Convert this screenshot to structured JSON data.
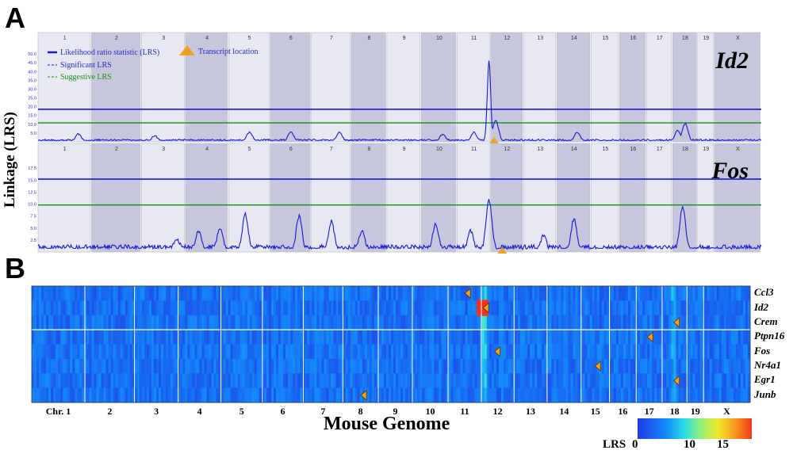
{
  "panels": {
    "a": "A",
    "b": "B"
  },
  "y_axis_label": "Linkage (LRS)",
  "chromosomes": [
    "1",
    "2",
    "3",
    "4",
    "5",
    "6",
    "7",
    "8",
    "9",
    "10",
    "11",
    "12",
    "13",
    "14",
    "15",
    "16",
    "17",
    "18",
    "19",
    "X"
  ],
  "legend": {
    "lrs": "Likelihood ratio statistic (LRS)",
    "significant": "Significant LRS",
    "suggestive": "Suggestive LRS",
    "transcript": "Transcript location"
  },
  "colors": {
    "lrs": "#1a1ad6",
    "significant": "#1a1ad6",
    "suggestive": "#1e8c1e",
    "transcript": "#f0a020",
    "panel_odd": "#e8e8f2",
    "panel_even": "#c6c6dc"
  },
  "chart_data": [
    {
      "type": "line",
      "title": "Id2",
      "ylabel": "Linkage (LRS)",
      "ylim": [
        0,
        55
      ],
      "yticks": [
        "5.0",
        "10.0",
        "15.0",
        "20.0",
        "25.0",
        "30.0",
        "35.0",
        "40.0",
        "45.0",
        "50.0"
      ],
      "significant_lrs": 18.5,
      "suggestive_lrs": 10.8,
      "transcript_location": {
        "chromosome": "12",
        "position": 0.1
      },
      "peaks": [
        {
          "chromosome": "1",
          "position": 0.75,
          "lrs": 4
        },
        {
          "chromosome": "3",
          "position": 0.3,
          "lrs": 3
        },
        {
          "chromosome": "5",
          "position": 0.5,
          "lrs": 5
        },
        {
          "chromosome": "6",
          "position": 0.5,
          "lrs": 5
        },
        {
          "chromosome": "7",
          "position": 0.7,
          "lrs": 5
        },
        {
          "chromosome": "10",
          "position": 0.6,
          "lrs": 4
        },
        {
          "chromosome": "11",
          "position": 0.5,
          "lrs": 5
        },
        {
          "chromosome": "11",
          "position": 0.95,
          "lrs": 46
        },
        {
          "chromosome": "12",
          "position": 0.15,
          "lrs": 12
        },
        {
          "chromosome": "14",
          "position": 0.6,
          "lrs": 5
        },
        {
          "chromosome": "18",
          "position": 0.2,
          "lrs": 6
        },
        {
          "chromosome": "18",
          "position": 0.5,
          "lrs": 10
        }
      ]
    },
    {
      "type": "line",
      "title": "Fos",
      "ylabel": "Linkage (LRS)",
      "ylim": [
        0,
        20
      ],
      "yticks": [
        "2.5",
        "5.0",
        "7.5",
        "10.0",
        "12.5",
        "15.0",
        "17.5"
      ],
      "significant_lrs": 15.2,
      "suggestive_lrs": 9.8,
      "transcript_location": {
        "chromosome": "12",
        "position": 0.35
      },
      "peaks": [
        {
          "chromosome": "3",
          "position": 0.8,
          "lrs": 2.5
        },
        {
          "chromosome": "4",
          "position": 0.3,
          "lrs": 4
        },
        {
          "chromosome": "4",
          "position": 0.8,
          "lrs": 4.5
        },
        {
          "chromosome": "5",
          "position": 0.4,
          "lrs": 7.5
        },
        {
          "chromosome": "6",
          "position": 0.7,
          "lrs": 7
        },
        {
          "chromosome": "7",
          "position": 0.5,
          "lrs": 6
        },
        {
          "chromosome": "8",
          "position": 0.3,
          "lrs": 4
        },
        {
          "chromosome": "10",
          "position": 0.4,
          "lrs": 5.5
        },
        {
          "chromosome": "11",
          "position": 0.4,
          "lrs": 4
        },
        {
          "chromosome": "11",
          "position": 0.95,
          "lrs": 10.5
        },
        {
          "chromosome": "13",
          "position": 0.6,
          "lrs": 3
        },
        {
          "chromosome": "14",
          "position": 0.5,
          "lrs": 6.5
        },
        {
          "chromosome": "18",
          "position": 0.4,
          "lrs": 9
        }
      ]
    },
    {
      "type": "heatmap",
      "xlabel": "Mouse Genome",
      "x_ticks": [
        "Chr. 1",
        "2",
        "3",
        "4",
        "5",
        "6",
        "7",
        "8",
        "9",
        "10",
        "11",
        "12",
        "13",
        "14",
        "15",
        "16",
        "17",
        "18",
        "19",
        "X"
      ],
      "rows": [
        "Ccl3",
        "Id2",
        "Crem",
        "Ptpn16",
        "Fos",
        "Nr4a1",
        "Egr1",
        "Junb"
      ],
      "colorbar": {
        "label": "LRS",
        "ticks": [
          "0",
          "10",
          "15"
        ],
        "range": [
          0,
          20
        ]
      },
      "transcript_locations": [
        {
          "gene": "Ccl3",
          "chromosome": "11"
        },
        {
          "gene": "Id2",
          "chromosome": "12"
        },
        {
          "gene": "Crem",
          "chromosome": "18"
        },
        {
          "gene": "Ptpn16",
          "chromosome": "17"
        },
        {
          "gene": "Fos",
          "chromosome": "12"
        },
        {
          "gene": "Nr4a1",
          "chromosome": "15"
        },
        {
          "gene": "Egr1",
          "chromosome": "18"
        },
        {
          "gene": "Junb",
          "chromosome": "8"
        }
      ],
      "hotspots": [
        {
          "chromosome": "12",
          "position": 0.05,
          "lrs": 9
        },
        {
          "chromosome": "18",
          "position": 0.4,
          "lrs": 7
        },
        {
          "chromosome": "5",
          "position": 0.5,
          "lrs": 5
        },
        {
          "chromosome": "10",
          "position": 0.5,
          "lrs": 5
        },
        {
          "chromosome": "14",
          "position": 0.5,
          "lrs": 5
        }
      ],
      "max_cell": {
        "gene": "Id2",
        "chromosome": "11",
        "lrs": 20
      }
    }
  ],
  "x_axis_label": "Mouse Genome"
}
